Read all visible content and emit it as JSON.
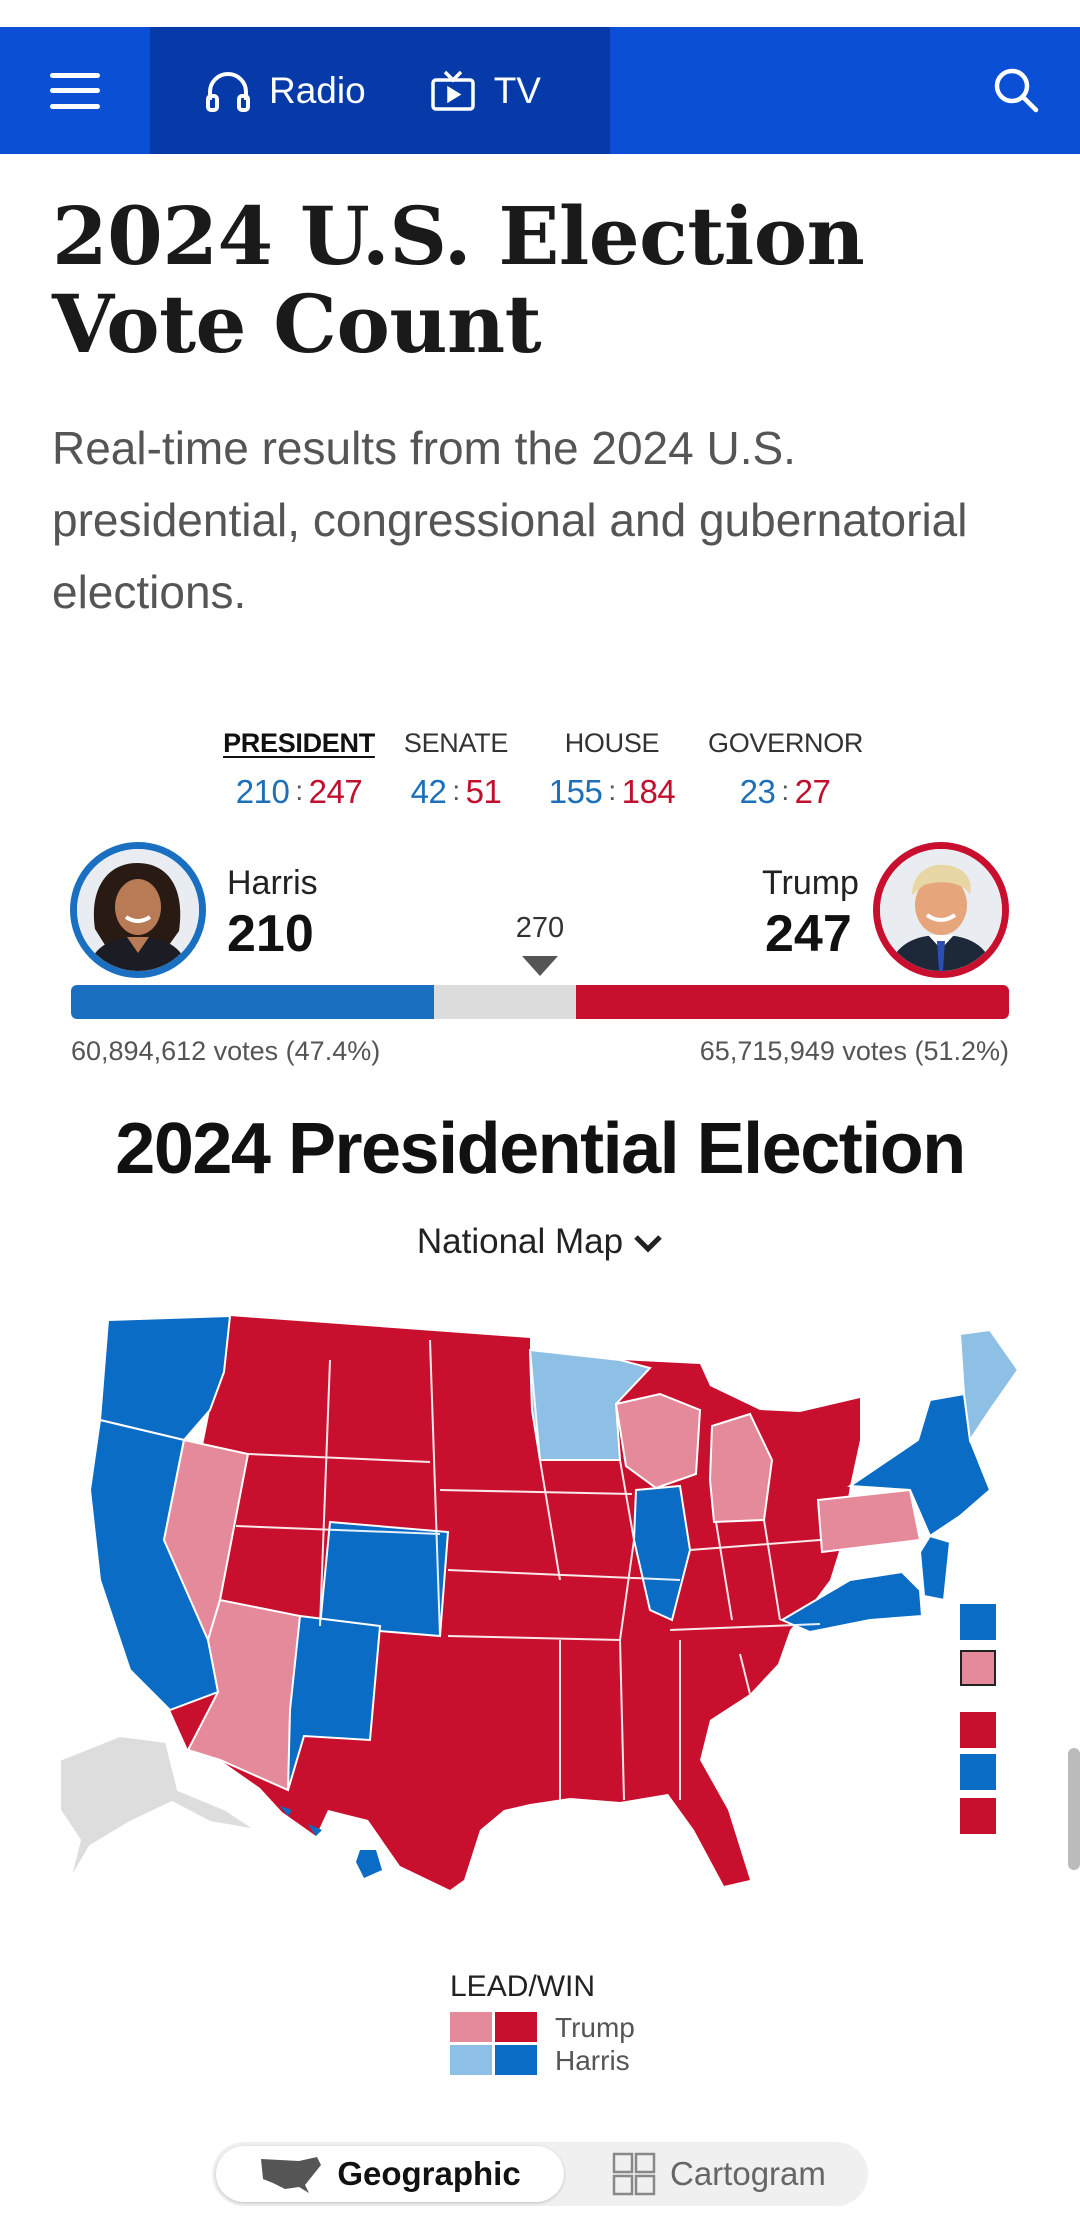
{
  "nav": {
    "radio_label": "Radio",
    "tv_label": "TV"
  },
  "page": {
    "title_line1": "2024 U.S. Election",
    "title_line2": "Vote Count",
    "subtitle": "Real-time results from the 2024 U.S. presidential, congressional and gubernatorial elections."
  },
  "tabs": [
    {
      "label": "PRESIDENT",
      "dem": "210",
      "rep": "247",
      "active": true
    },
    {
      "label": "SENATE",
      "dem": "42",
      "rep": "51"
    },
    {
      "label": "HOUSE",
      "dem": "155",
      "rep": "184"
    },
    {
      "label": "GOVERNOR",
      "dem": "23",
      "rep": "27"
    }
  ],
  "race": {
    "harris_name": "Harris",
    "harris_ev": "210",
    "trump_name": "Trump",
    "trump_ev": "247",
    "threshold": "270",
    "harris_votes": "60,894,612 votes (47.4%)",
    "trump_votes": "65,715,949 votes (51.2%)"
  },
  "map": {
    "title": "2024 Presidential Election",
    "view_select": "National Map"
  },
  "legend": {
    "title": "LEAD/WIN",
    "trump": "Trump",
    "harris": "Harris"
  },
  "toggle": {
    "geographic": "Geographic",
    "cartogram": "Cartogram"
  },
  "colors": {
    "nav_blue": "#0a4fd6",
    "harris_win": "#0a6cc4",
    "harris_lead": "#8ebfe4",
    "trump_win": "#c8102e",
    "trump_lead": "#e58a9b",
    "uncalled": "#dddddd"
  }
}
